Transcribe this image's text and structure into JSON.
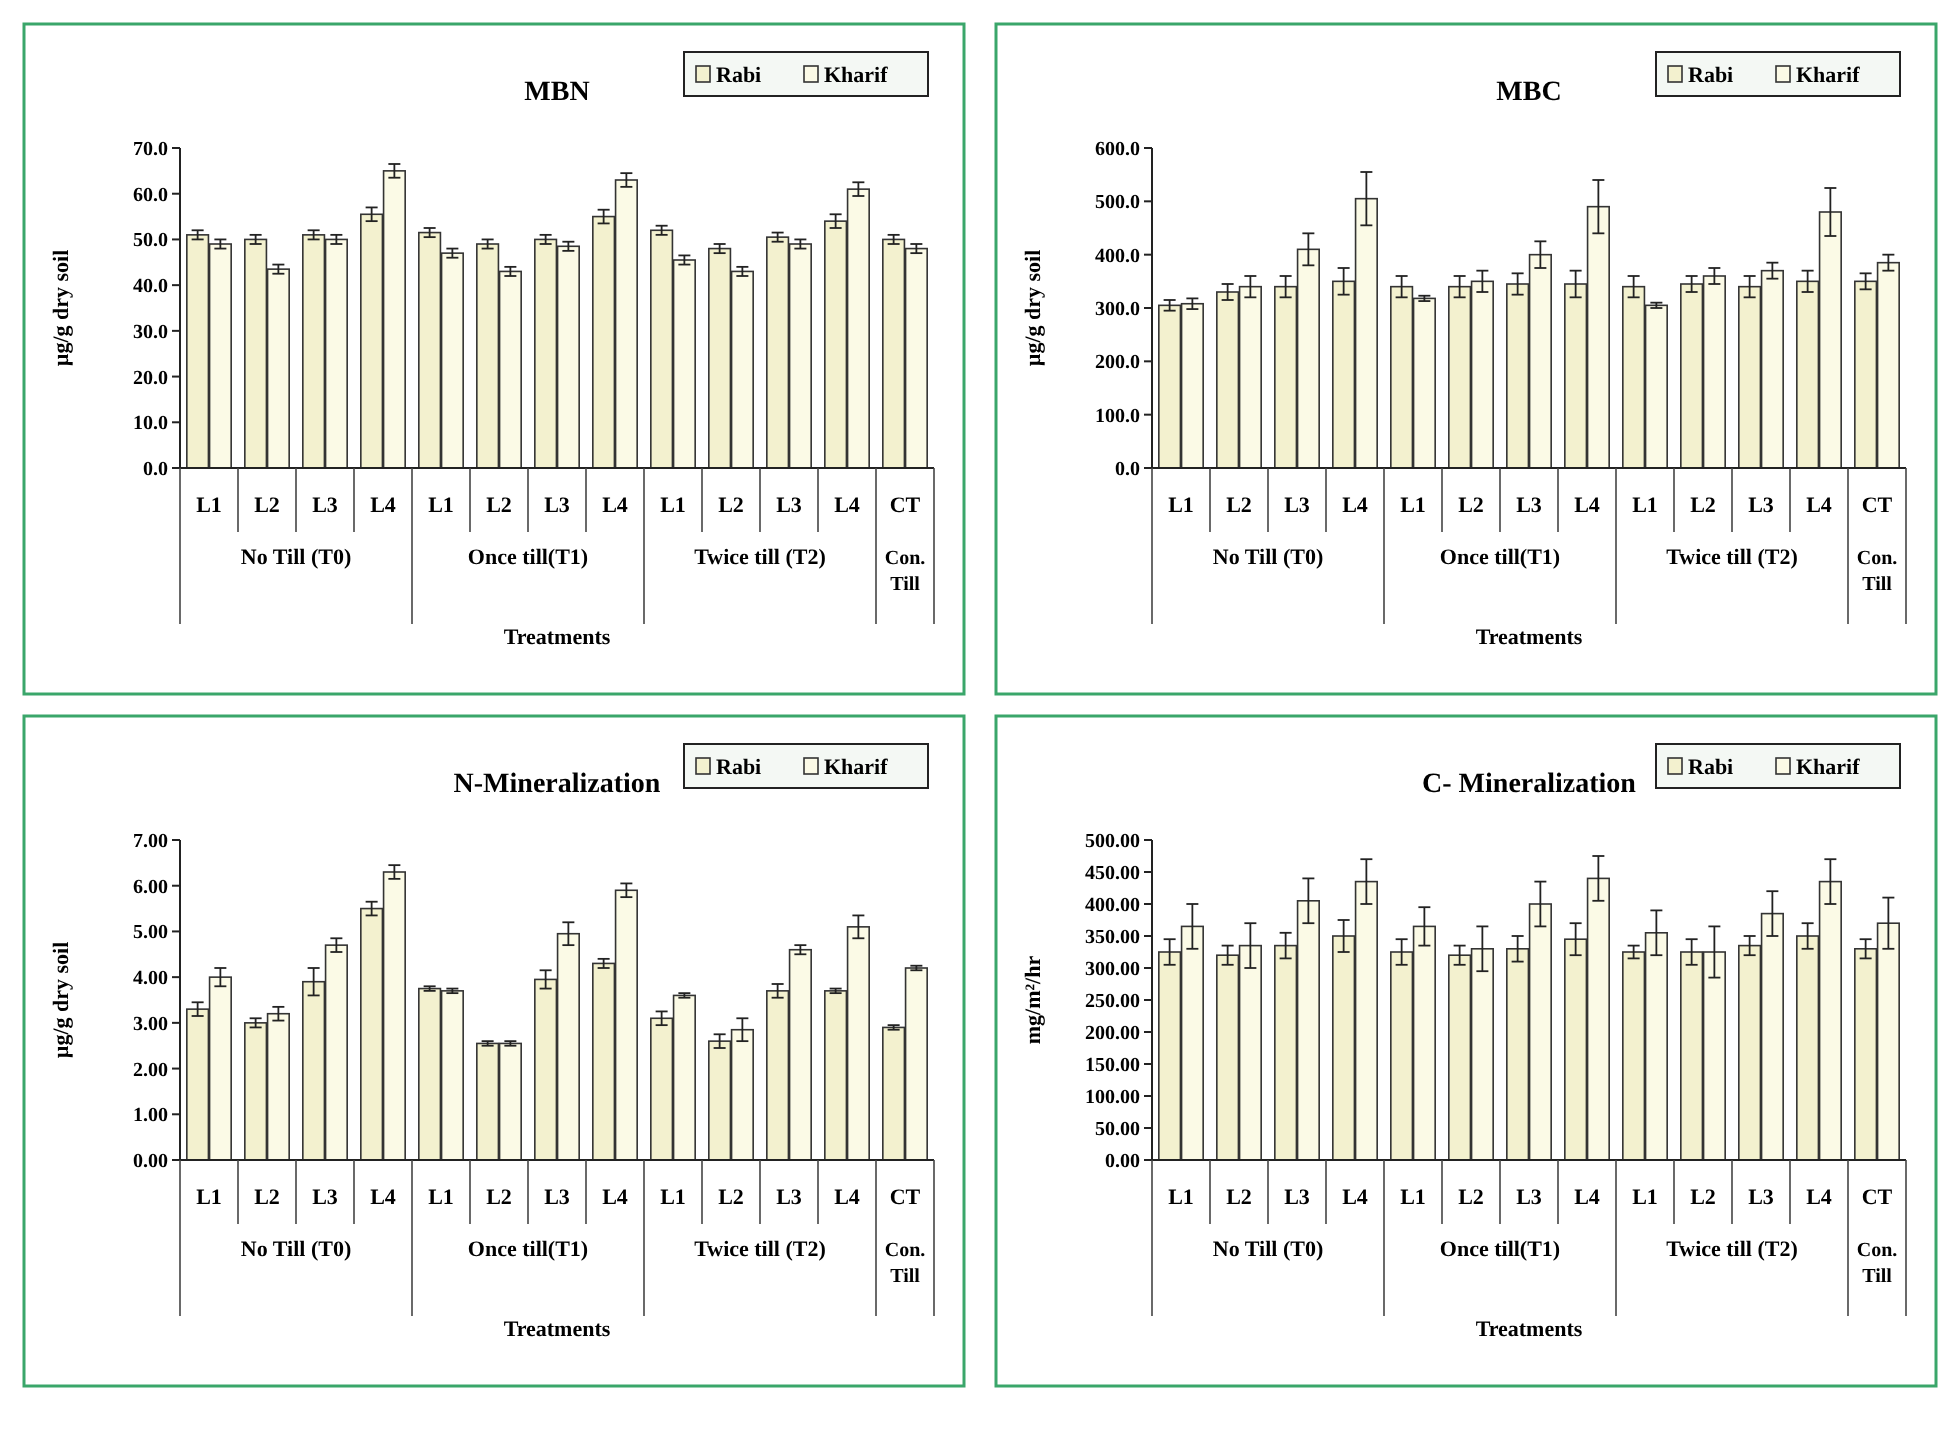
{
  "chart_data": [
    {
      "type": "bar",
      "title": "MBN",
      "ylabel": "µg/g dry soil",
      "xlabel": "Treatments",
      "categories": [
        "L1",
        "L2",
        "L3",
        "L4",
        "L1",
        "L2",
        "L3",
        "L4",
        "L1",
        "L2",
        "L3",
        "L4",
        "CT"
      ],
      "annotations": [
        "No Till (T0)",
        "Once till(T1)",
        "Twice till (T2)",
        "Con. Till"
      ],
      "ylim": [
        0,
        70
      ],
      "yticks": [
        {
          "value": 0,
          "label": "0.0"
        },
        {
          "value": 10,
          "label": "10.0"
        },
        {
          "value": 20,
          "label": "20.0"
        },
        {
          "value": 30,
          "label": "30.0"
        },
        {
          "value": 40,
          "label": "40.0"
        },
        {
          "value": 50,
          "label": "50.0"
        },
        {
          "value": 60,
          "label": "60.0"
        },
        {
          "value": 70,
          "label": "70.0"
        }
      ],
      "legend": "top right",
      "series": [
        {
          "name": "Rabi",
          "color": "#f3f1cf",
          "values": [
            51,
            50,
            51,
            55.5,
            51.5,
            49,
            50,
            55,
            52,
            48,
            50.5,
            54,
            50
          ],
          "errors": [
            1,
            1,
            1,
            1.5,
            1,
            1,
            1,
            1.5,
            1,
            1,
            1,
            1.5,
            1
          ]
        },
        {
          "name": "Kharif",
          "color": "#fbfae6",
          "values": [
            49,
            43.5,
            50,
            65,
            47,
            43,
            48.5,
            63,
            45.5,
            43,
            49,
            61,
            48
          ],
          "errors": [
            1,
            1,
            1,
            1.5,
            1,
            1,
            1,
            1.5,
            1,
            1,
            1,
            1.5,
            1
          ]
        }
      ]
    },
    {
      "type": "bar",
      "title": "MBC",
      "ylabel": "µg/g dry soil",
      "xlabel": "Treatments",
      "categories": [
        "L1",
        "L2",
        "L3",
        "L4",
        "L1",
        "L2",
        "L3",
        "L4",
        "L1",
        "L2",
        "L3",
        "L4",
        "CT"
      ],
      "annotations": [
        "No Till (T0)",
        "Once till(T1)",
        "Twice till (T2)",
        "Con. Till"
      ],
      "ylim": [
        0,
        600
      ],
      "yticks": [
        {
          "value": 0,
          "label": "0.0"
        },
        {
          "value": 100,
          "label": "100.0"
        },
        {
          "value": 200,
          "label": "200.0"
        },
        {
          "value": 300,
          "label": "300.0"
        },
        {
          "value": 400,
          "label": "400.0"
        },
        {
          "value": 500,
          "label": "500.0"
        },
        {
          "value": 600,
          "label": "600.0"
        }
      ],
      "legend": "top right",
      "series": [
        {
          "name": "Rabi",
          "color": "#f3f1cf",
          "values": [
            305,
            330,
            340,
            350,
            340,
            340,
            345,
            345,
            340,
            345,
            340,
            350,
            350
          ],
          "errors": [
            10,
            15,
            20,
            25,
            20,
            20,
            20,
            25,
            20,
            15,
            20,
            20,
            15
          ]
        },
        {
          "name": "Kharif",
          "color": "#fbfae6",
          "values": [
            308,
            340,
            410,
            505,
            318,
            350,
            400,
            490,
            305,
            360,
            370,
            480,
            385
          ],
          "errors": [
            10,
            20,
            30,
            50,
            5,
            20,
            25,
            50,
            5,
            15,
            15,
            45,
            15
          ]
        }
      ]
    },
    {
      "type": "bar",
      "title": "N-Mineralization",
      "ylabel": "µg/g dry soil",
      "xlabel": "Treatments",
      "categories": [
        "L1",
        "L2",
        "L3",
        "L4",
        "L1",
        "L2",
        "L3",
        "L4",
        "L1",
        "L2",
        "L3",
        "L4",
        "CT"
      ],
      "annotations": [
        "No Till (T0)",
        "Once till(T1)",
        "Twice till (T2)",
        "Con. Till"
      ],
      "ylim": [
        0,
        7
      ],
      "yticks": [
        {
          "value": 0,
          "label": "0.00"
        },
        {
          "value": 1,
          "label": "1.00"
        },
        {
          "value": 2,
          "label": "2.00"
        },
        {
          "value": 3,
          "label": "3.00"
        },
        {
          "value": 4,
          "label": "4.00"
        },
        {
          "value": 5,
          "label": "5.00"
        },
        {
          "value": 6,
          "label": "6.00"
        },
        {
          "value": 7,
          "label": "7.00"
        }
      ],
      "legend": "top right",
      "series": [
        {
          "name": "Rabi",
          "color": "#f3f1cf",
          "values": [
            3.3,
            3.0,
            3.9,
            5.5,
            3.75,
            2.55,
            3.95,
            4.3,
            3.1,
            2.6,
            3.7,
            3.7,
            2.9
          ],
          "errors": [
            0.15,
            0.1,
            0.3,
            0.15,
            0.05,
            0.05,
            0.2,
            0.1,
            0.15,
            0.15,
            0.15,
            0.05,
            0.05
          ]
        },
        {
          "name": "Kharif",
          "color": "#fbfae6",
          "values": [
            4.0,
            3.2,
            4.7,
            6.3,
            3.7,
            2.55,
            4.95,
            5.9,
            3.6,
            2.85,
            4.6,
            5.1,
            4.2
          ],
          "errors": [
            0.2,
            0.15,
            0.15,
            0.15,
            0.05,
            0.05,
            0.25,
            0.15,
            0.05,
            0.25,
            0.1,
            0.25,
            0.05
          ]
        }
      ]
    },
    {
      "type": "bar",
      "title": "C- Mineralization",
      "ylabel": "mg/m²/hr",
      "xlabel": "Treatments",
      "categories": [
        "L1",
        "L2",
        "L3",
        "L4",
        "L1",
        "L2",
        "L3",
        "L4",
        "L1",
        "L2",
        "L3",
        "L4",
        "CT"
      ],
      "annotations": [
        "No Till (T0)",
        "Once till(T1)",
        "Twice till (T2)",
        "Con. Till"
      ],
      "ylim": [
        0,
        500
      ],
      "yticks": [
        {
          "value": 0,
          "label": "0.00"
        },
        {
          "value": 50,
          "label": "50.00"
        },
        {
          "value": 100,
          "label": "100.00"
        },
        {
          "value": 150,
          "label": "150.00"
        },
        {
          "value": 200,
          "label": "200.00"
        },
        {
          "value": 250,
          "label": "250.00"
        },
        {
          "value": 300,
          "label": "300.00"
        },
        {
          "value": 350,
          "label": "350.00"
        },
        {
          "value": 400,
          "label": "400.00"
        },
        {
          "value": 450,
          "label": "450.00"
        },
        {
          "value": 500,
          "label": "500.00"
        }
      ],
      "legend": "top right",
      "series": [
        {
          "name": "Rabi",
          "color": "#f3f1cf",
          "values": [
            325,
            320,
            335,
            350,
            325,
            320,
            330,
            345,
            325,
            325,
            335,
            350,
            330
          ],
          "errors": [
            20,
            15,
            20,
            25,
            20,
            15,
            20,
            25,
            10,
            20,
            15,
            20,
            15
          ]
        },
        {
          "name": "Kharif",
          "color": "#fbfae6",
          "values": [
            365,
            335,
            405,
            435,
            365,
            330,
            400,
            440,
            355,
            325,
            385,
            435,
            370
          ],
          "errors": [
            35,
            35,
            35,
            35,
            30,
            35,
            35,
            35,
            35,
            40,
            35,
            35,
            40
          ]
        }
      ]
    }
  ]
}
